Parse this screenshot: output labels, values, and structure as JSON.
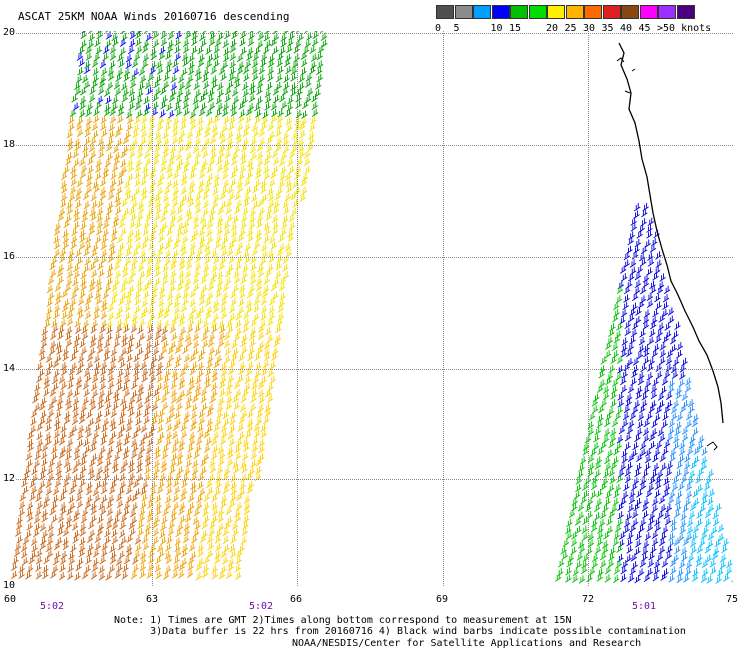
{
  "title": "ASCAT 25KM NOAA Winds 20160716 descending",
  "legend": {
    "colors": [
      "#505050",
      "#8c8c8c",
      "#00a0ff",
      "#0000ff",
      "#00c000",
      "#00dd00",
      "#ffee00",
      "#ffb400",
      "#ff6a00",
      "#e02020",
      "#8b4513",
      "#ff00ff",
      "#9b30ff",
      "#4b0082"
    ],
    "labels": [
      {
        "text": "0",
        "index": 0
      },
      {
        "text": "5",
        "index": 1
      },
      {
        "text": "10",
        "index": 3
      },
      {
        "text": "15",
        "index": 4
      },
      {
        "text": "20",
        "index": 6
      },
      {
        "text": "25",
        "index": 7
      },
      {
        "text": "30",
        "index": 8
      },
      {
        "text": "35",
        "index": 9
      },
      {
        "text": "40",
        "index": 10
      },
      {
        "text": "45",
        "index": 11
      },
      {
        "text": ">50 knots",
        "index": 12
      }
    ]
  },
  "map": {
    "lat_labels": [
      "20",
      "18",
      "16",
      "14",
      "12",
      "10"
    ],
    "lon_labels": [
      "60",
      "63",
      "66",
      "69",
      "72",
      "75"
    ],
    "time_labels": [
      "5:02",
      "5:02",
      "5:01"
    ]
  },
  "notes": "Note: 1) Times are GMT 2)Times along bottom correspond to measurement at 15N\n      3)Data buffer is 22 hrs from 20160716 4) Black wind barbs indicate possible contamination",
  "credit": "NOAA/NESDIS/Center for Satellite Applications and Research"
}
